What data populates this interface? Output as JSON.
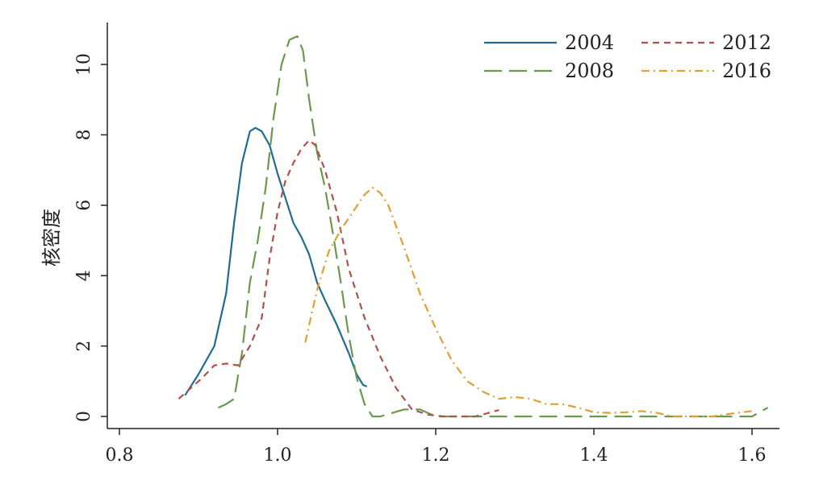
{
  "chart_data": {
    "type": "line",
    "title": "",
    "xlabel": "",
    "ylabel": "核密度",
    "xlim": [
      0.8,
      1.62
    ],
    "ylim": [
      0,
      11.2
    ],
    "xticks": [
      "0.8",
      "1.0",
      "1.2",
      "1.4",
      "1.6"
    ],
    "yticks": [
      "0",
      "2",
      "4",
      "6",
      "8",
      "10"
    ],
    "legend_position": "top-right",
    "grid": false,
    "series": [
      {
        "name": "2004",
        "color": "#1f6d8e",
        "dash": "solid",
        "x": [
          0.883,
          0.9,
          0.92,
          0.935,
          0.945,
          0.955,
          0.965,
          0.972,
          0.98,
          0.99,
          1.0,
          1.01,
          1.02,
          1.03,
          1.04,
          1.05,
          1.06,
          1.075,
          1.09,
          1.1,
          1.108,
          1.113
        ],
        "y": [
          0.6,
          1.2,
          2.0,
          3.5,
          5.5,
          7.2,
          8.1,
          8.2,
          8.1,
          7.7,
          6.9,
          6.2,
          5.5,
          5.1,
          4.6,
          3.8,
          3.3,
          2.6,
          1.8,
          1.2,
          0.9,
          0.85
        ]
      },
      {
        "name": "2008",
        "color": "#6a994e",
        "dash": "long-dash",
        "x": [
          0.925,
          0.935,
          0.945,
          0.955,
          0.965,
          0.975,
          0.985,
          0.995,
          1.005,
          1.015,
          1.025,
          1.032,
          1.04,
          1.05,
          1.06,
          1.07,
          1.08,
          1.09,
          1.1,
          1.11,
          1.12,
          1.13,
          1.16,
          1.18,
          1.2,
          1.6,
          1.62
        ],
        "y": [
          0.25,
          0.35,
          0.5,
          1.8,
          3.8,
          5.0,
          6.5,
          8.5,
          10.0,
          10.7,
          10.8,
          10.4,
          9.0,
          7.5,
          6.5,
          5.2,
          3.8,
          2.3,
          1.1,
          0.35,
          0.0,
          0.0,
          0.2,
          0.2,
          0.0,
          0.0,
          0.25
        ]
      },
      {
        "name": "2012",
        "color": "#b0504a",
        "dash": "short-dash",
        "x": [
          0.875,
          0.89,
          0.905,
          0.92,
          0.935,
          0.95,
          0.965,
          0.98,
          0.99,
          1.0,
          1.01,
          1.02,
          1.03,
          1.04,
          1.048,
          1.06,
          1.075,
          1.09,
          1.11,
          1.13,
          1.15,
          1.17,
          1.19,
          1.21,
          1.25,
          1.28
        ],
        "y": [
          0.5,
          0.8,
          1.1,
          1.45,
          1.5,
          1.45,
          2.0,
          2.8,
          4.5,
          5.8,
          6.7,
          7.2,
          7.6,
          7.85,
          7.7,
          7.0,
          5.8,
          4.2,
          2.8,
          1.7,
          0.8,
          0.2,
          0.05,
          0.0,
          0.0,
          0.18
        ]
      },
      {
        "name": "2016",
        "color": "#e0a030",
        "dash": "dash-dot",
        "x": [
          1.035,
          1.05,
          1.065,
          1.08,
          1.095,
          1.11,
          1.12,
          1.13,
          1.14,
          1.16,
          1.18,
          1.2,
          1.22,
          1.24,
          1.26,
          1.28,
          1.3,
          1.32,
          1.34,
          1.36,
          1.38,
          1.4,
          1.42,
          1.44,
          1.46,
          1.48,
          1.5,
          1.55,
          1.58,
          1.6
        ],
        "y": [
          2.1,
          3.6,
          4.7,
          5.3,
          5.8,
          6.3,
          6.5,
          6.35,
          6.0,
          4.8,
          3.5,
          2.5,
          1.6,
          1.0,
          0.7,
          0.5,
          0.55,
          0.5,
          0.35,
          0.35,
          0.25,
          0.12,
          0.1,
          0.12,
          0.15,
          0.1,
          0.0,
          0.0,
          0.1,
          0.15
        ]
      }
    ]
  }
}
